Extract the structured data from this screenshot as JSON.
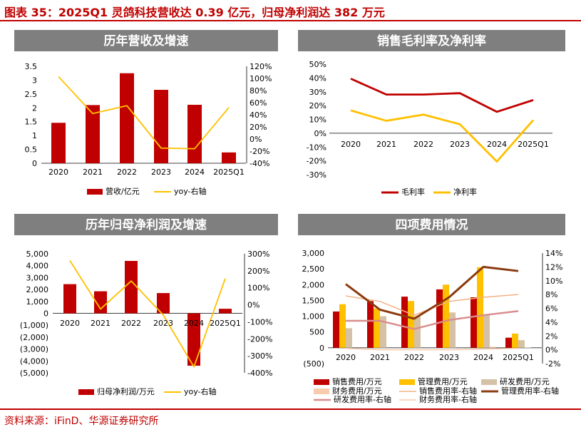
{
  "figure_title": "图表 35：2025Q1 灵鸽科技营收达 0.39 亿元，归母净利润达 382 万元",
  "source": "资料来源：iFinD、华源证券研究所",
  "colors": {
    "red": "#c00000",
    "yellow": "#ffc000",
    "tan": "#d5c2a6",
    "light_orange": "#f4b183",
    "dark_brown": "#8b3a0f",
    "pink": "#d98c8c",
    "peach": "#f8cbad",
    "panel_header": "#7f7f7f"
  },
  "chart_data": [
    {
      "type": "bar+line",
      "title": "历年营收及增速",
      "categories": [
        "2020",
        "2021",
        "2022",
        "2023",
        "2024",
        "2025Q1"
      ],
      "bar_series": {
        "name": "营收/亿元",
        "values": [
          1.46,
          2.1,
          3.25,
          2.65,
          2.11,
          0.39
        ]
      },
      "line_series": {
        "name": "yoy-右轴",
        "values": [
          103,
          42,
          55,
          -15,
          -16,
          52
        ]
      },
      "y_left": {
        "min": 0,
        "max": 3.5,
        "step": 0.5,
        "ticks": [
          "0",
          "0.5",
          "1",
          "1.5",
          "2",
          "2.5",
          "3",
          "3.5"
        ]
      },
      "y_right": {
        "min": -40,
        "max": 120,
        "step": 20,
        "ticks": [
          "-40%",
          "-20%",
          "0%",
          "20%",
          "40%",
          "60%",
          "80%",
          "100%",
          "120%"
        ]
      },
      "legend": "bottom"
    },
    {
      "type": "line",
      "title": "销售毛利率及净利率",
      "categories": [
        "2020",
        "2021",
        "2022",
        "2023",
        "2024",
        "2025Q1"
      ],
      "series": [
        {
          "name": "毛利率",
          "values": [
            39.5,
            28,
            28,
            29,
            15.5,
            24
          ]
        },
        {
          "name": "净利率",
          "values": [
            16.5,
            9,
            13.5,
            6.5,
            -20.5,
            9.5
          ]
        }
      ],
      "y_left": {
        "min": -30,
        "max": 50,
        "step": 10,
        "ticks": [
          "-30%",
          "-20%",
          "-10%",
          "0%",
          "10%",
          "20%",
          "30%",
          "40%",
          "50%"
        ]
      },
      "legend": "bottom"
    },
    {
      "type": "bar+line",
      "title": "历年归母净利润及增速",
      "categories": [
        "2020",
        "2021",
        "2022",
        "2023",
        "2024",
        "2025Q1"
      ],
      "bar_series": {
        "name": "归母净利润/万元",
        "values": [
          2450,
          1850,
          4400,
          1700,
          -4400,
          382
        ]
      },
      "line_series": {
        "name": "yoy-右轴",
        "values": [
          260,
          -25,
          140,
          -60,
          -365,
          155
        ]
      },
      "y_left": {
        "min": -5000,
        "max": 5000,
        "step": 1000,
        "ticks": [
          "(5,000)",
          "(4,000)",
          "(3,000)",
          "(2,000)",
          "(1,000)",
          "0",
          "1,000",
          "2,000",
          "3,000",
          "4,000",
          "5,000"
        ]
      },
      "y_right": {
        "min": -400,
        "max": 300,
        "step": 100,
        "ticks": [
          "-400%",
          "-300%",
          "-200%",
          "-100%",
          "0%",
          "100%",
          "200%",
          "300%"
        ]
      },
      "legend": "bottom"
    },
    {
      "type": "bar+line",
      "title": "四项费用情况",
      "categories": [
        "2020",
        "2021",
        "2022",
        "2023",
        "2024",
        "2025Q1"
      ],
      "bar_series_list": [
        {
          "name": "销售费用/万元",
          "values": [
            1150,
            1480,
            1620,
            1850,
            1600,
            320
          ]
        },
        {
          "name": "管理费用/万元",
          "values": [
            1380,
            1250,
            1480,
            2000,
            2550,
            450
          ]
        },
        {
          "name": "研发费用/万元",
          "values": [
            620,
            1000,
            1000,
            1120,
            1050,
            240
          ]
        },
        {
          "name": "财务费用/万元",
          "values": [
            0,
            0,
            0,
            0,
            30,
            10
          ]
        }
      ],
      "line_series_list": [
        {
          "name": "销售费用率-右轴",
          "values": [
            7.8,
            7.0,
            5.0,
            7.0,
            7.6,
            8.0
          ]
        },
        {
          "name": "管理费用率-右轴",
          "values": [
            9.5,
            5.8,
            4.5,
            7.6,
            12.0,
            11.4
          ]
        },
        {
          "name": "研发费用率-右轴",
          "values": [
            4.2,
            4.2,
            3.0,
            4.3,
            5.0,
            5.6
          ]
        },
        {
          "name": "财务费用率-右轴",
          "values": [
            0.2,
            0,
            0,
            0,
            0.1,
            0.2
          ]
        }
      ],
      "y_left": {
        "min": -500,
        "max": 3000,
        "step": 500,
        "ticks": [
          "(500)",
          "0",
          "500",
          "1,000",
          "1,500",
          "2,000",
          "2,500",
          "3,000"
        ]
      },
      "y_right": {
        "min": -2,
        "max": 14,
        "step": 2,
        "ticks": [
          "-2%",
          "0%",
          "2%",
          "4%",
          "6%",
          "8%",
          "10%",
          "12%",
          "14%"
        ]
      },
      "legend": "bottom"
    }
  ]
}
